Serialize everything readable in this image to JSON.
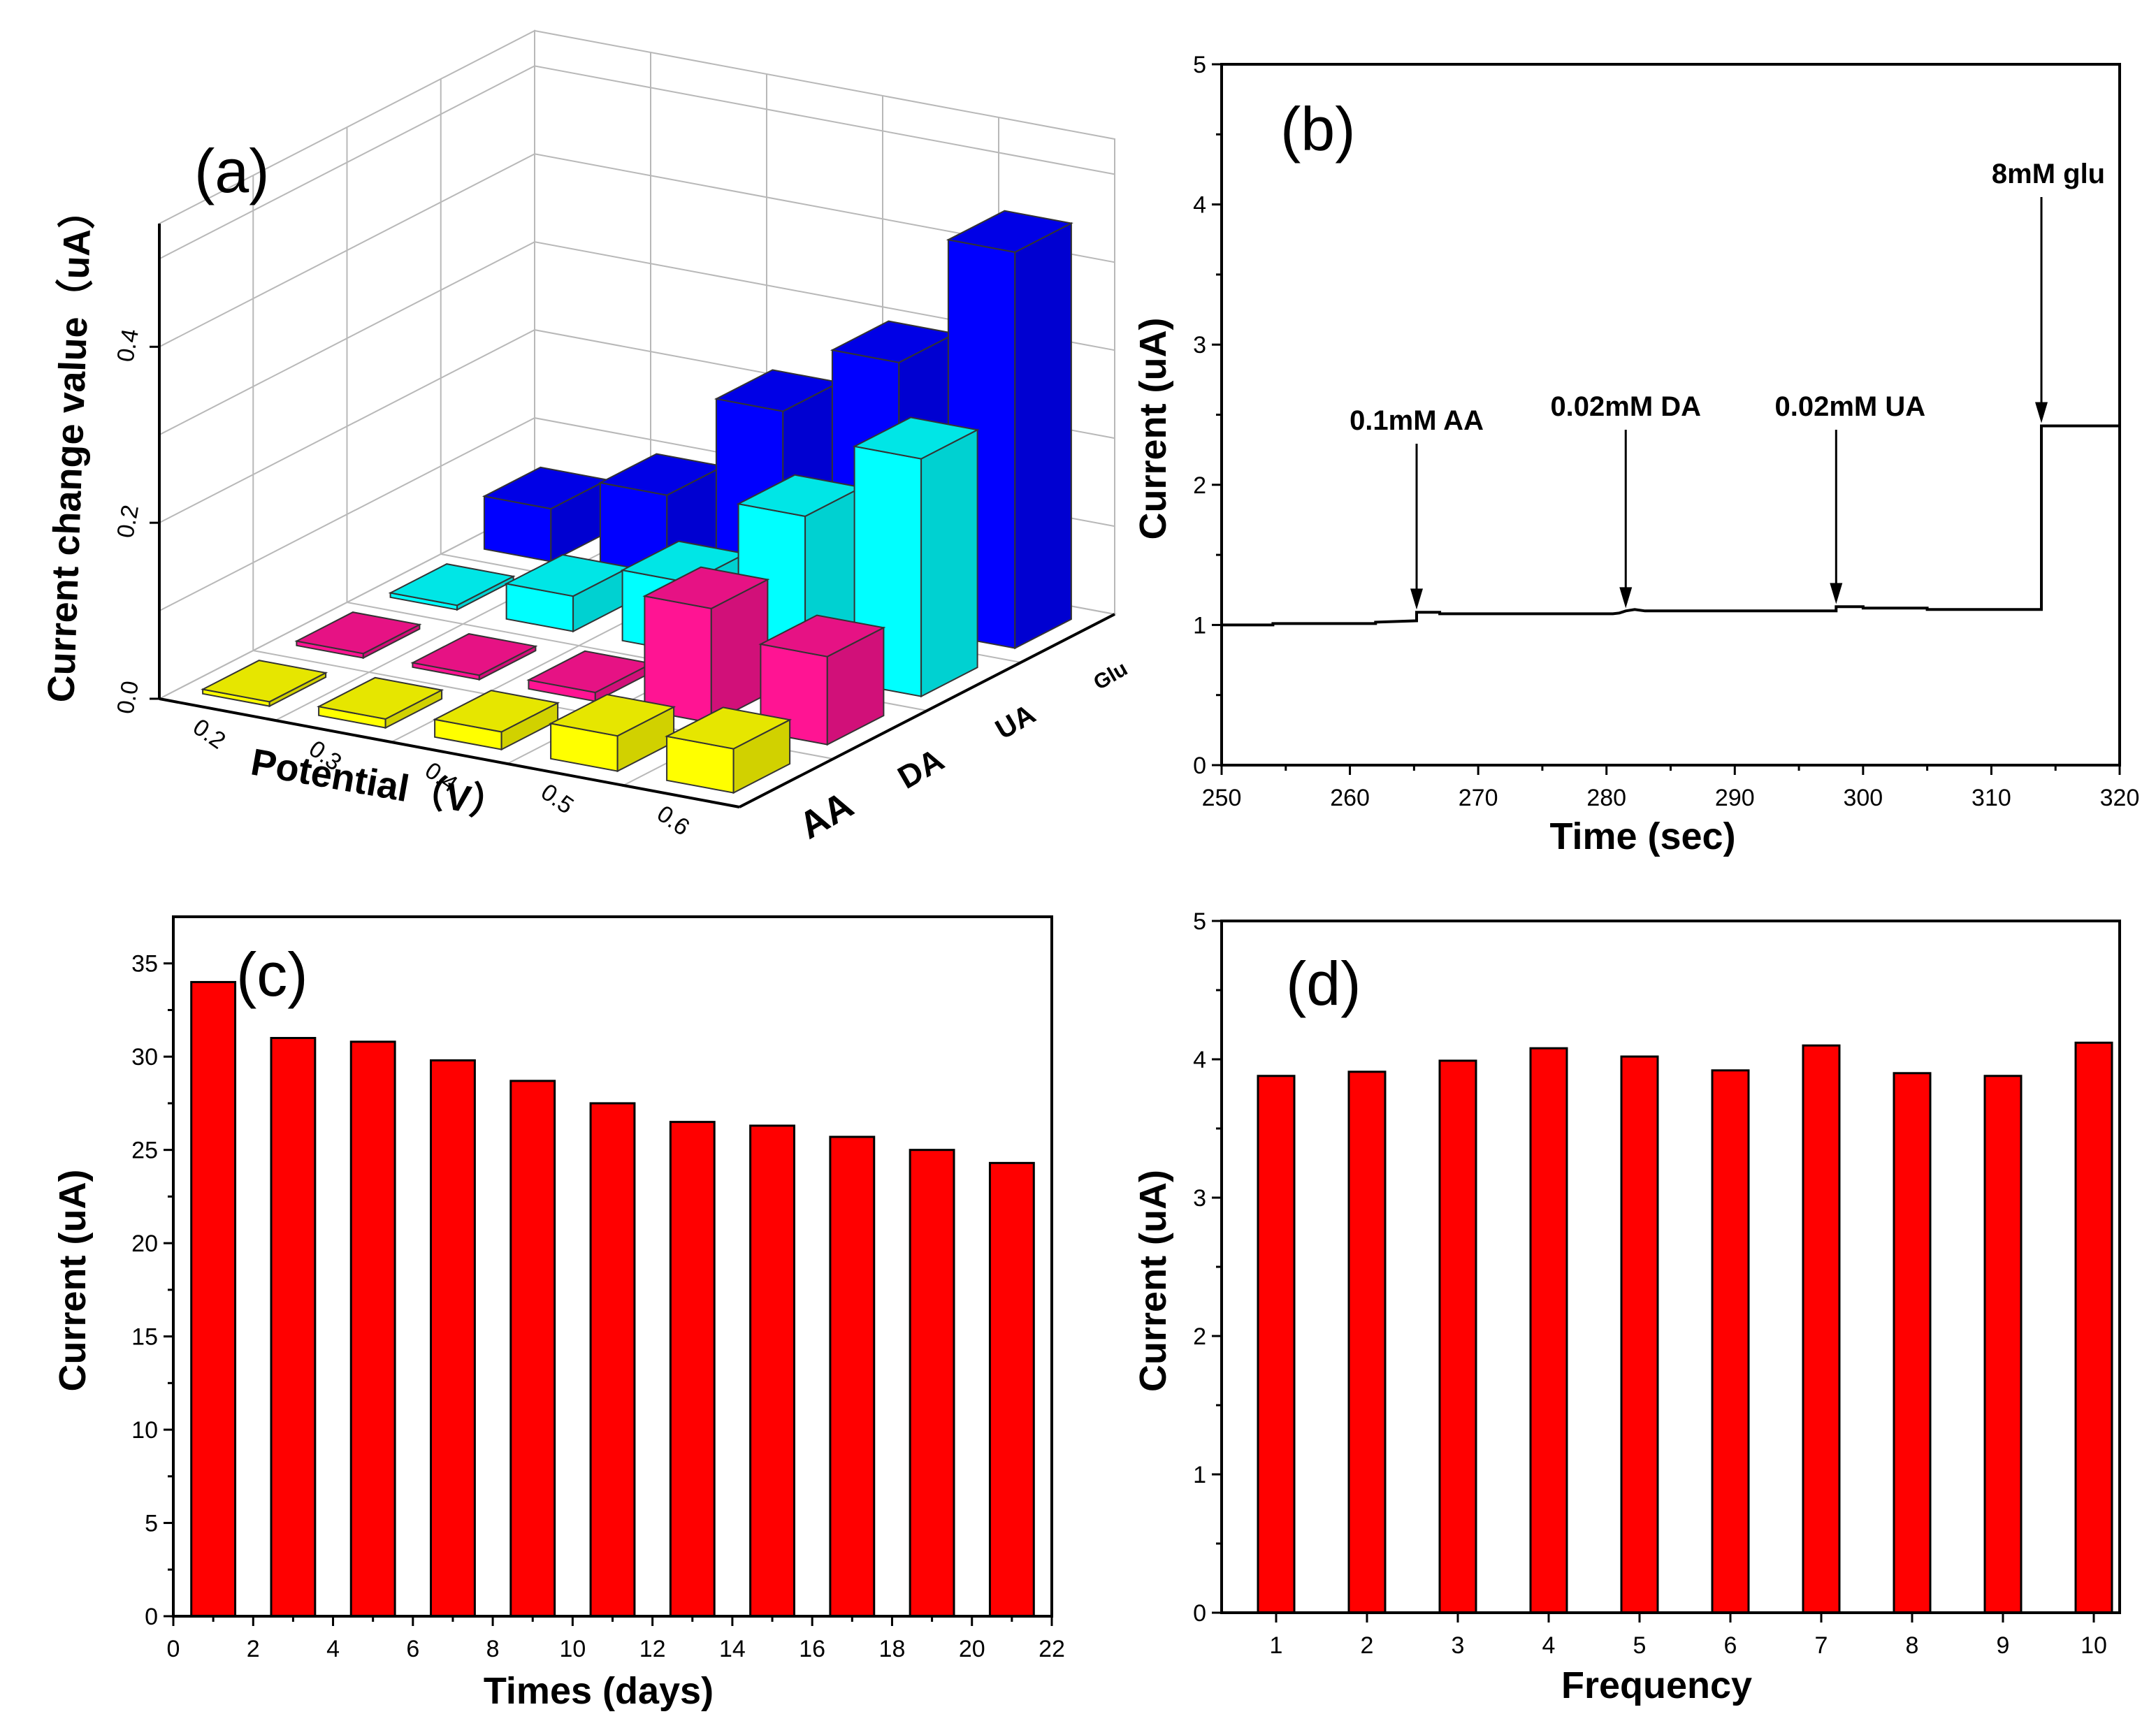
{
  "colors": {
    "bar_red": "#ff0000",
    "axis": "#000000",
    "s3d_AA": "#ffff00",
    "s3d_DA": "#ff1493",
    "s3d_UA": "#00ffff",
    "s3d_Glu": "#0000ff"
  },
  "chart_data": [
    {
      "id": "a",
      "panel_label": "(a)",
      "type": "bar",
      "subtype": "3d-bar",
      "title": "",
      "xlabel": "Potential（V）",
      "ylabel": "Current change value（uA）",
      "zlabel": "",
      "categories": [
        "0.2",
        "0.3",
        "0.4",
        "0.5",
        "0.6"
      ],
      "series": [
        {
          "name": "AA",
          "values": [
            0.005,
            0.01,
            0.02,
            0.04,
            0.05
          ]
        },
        {
          "name": "DA",
          "values": [
            0.005,
            0.005,
            0.01,
            0.13,
            0.1
          ]
        },
        {
          "name": "UA",
          "values": [
            0.005,
            0.04,
            0.08,
            0.18,
            0.27
          ]
        },
        {
          "name": "Glu",
          "values": [
            0.06,
            0.1,
            0.22,
            0.3,
            0.45
          ]
        }
      ],
      "yticks": [
        "0.0",
        "0.2",
        "0.4"
      ],
      "ylim": [
        0,
        0.54
      ]
    },
    {
      "id": "b",
      "panel_label": "(b)",
      "type": "line",
      "title": "",
      "xlabel": "Time (sec)",
      "ylabel": "Current (uA)",
      "xlim": [
        250,
        320
      ],
      "ylim": [
        0,
        5
      ],
      "xticks": [
        "250",
        "260",
        "270",
        "280",
        "290",
        "300",
        "310",
        "320"
      ],
      "yticks": [
        "0",
        "1",
        "2",
        "3",
        "4",
        "5"
      ],
      "series": [
        {
          "name": "current",
          "x": [
            250,
            254,
            254,
            262,
            262,
            265.2,
            265.2,
            267,
            267,
            280.5,
            281,
            281.5,
            282.2,
            283,
            284,
            290,
            297.9,
            297.9,
            300,
            300,
            305,
            305,
            313.9,
            313.9,
            320
          ],
          "y": [
            1.0,
            1.0,
            1.01,
            1.01,
            1.02,
            1.03,
            1.09,
            1.09,
            1.08,
            1.08,
            1.085,
            1.1,
            1.11,
            1.1,
            1.1,
            1.1,
            1.1,
            1.13,
            1.13,
            1.12,
            1.12,
            1.11,
            1.11,
            2.42,
            2.42
          ]
        }
      ],
      "annotations": [
        {
          "text": "0.1mM AA",
          "x": 265.2,
          "y": 1.09
        },
        {
          "text": "0.02mM DA",
          "x": 281.5,
          "y": 1.1
        },
        {
          "text": "0.02mM UA",
          "x": 297.9,
          "y": 1.13
        },
        {
          "text": "8mM glu",
          "x": 313.9,
          "y": 2.42
        }
      ]
    },
    {
      "id": "c",
      "panel_label": "(c)",
      "type": "bar",
      "title": "",
      "xlabel": "Times (days)",
      "ylabel": "Current (uA)",
      "x": [
        1,
        3,
        5,
        7,
        9,
        11,
        13,
        15,
        17,
        19,
        21
      ],
      "values": [
        34.0,
        31.0,
        30.8,
        29.8,
        28.7,
        27.5,
        26.5,
        26.3,
        25.7,
        25.0,
        24.3
      ],
      "xlim": [
        0,
        22
      ],
      "ylim": [
        0,
        37.5
      ],
      "xticks": [
        "0",
        "2",
        "4",
        "6",
        "8",
        "10",
        "12",
        "14",
        "16",
        "18",
        "20",
        "22"
      ],
      "yticks": [
        "0",
        "5",
        "10",
        "15",
        "20",
        "25",
        "30",
        "35"
      ]
    },
    {
      "id": "d",
      "panel_label": "(d)",
      "type": "bar",
      "title": "",
      "xlabel": "Frequency",
      "ylabel": "Current (uA)",
      "categories": [
        "1",
        "2",
        "3",
        "4",
        "5",
        "6",
        "7",
        "8",
        "9",
        "10"
      ],
      "values": [
        3.88,
        3.91,
        3.99,
        4.08,
        4.02,
        3.92,
        4.1,
        3.9,
        3.88,
        4.12
      ],
      "ylim": [
        0,
        5
      ],
      "yticks": [
        "0",
        "1",
        "2",
        "3",
        "4",
        "5"
      ]
    }
  ]
}
